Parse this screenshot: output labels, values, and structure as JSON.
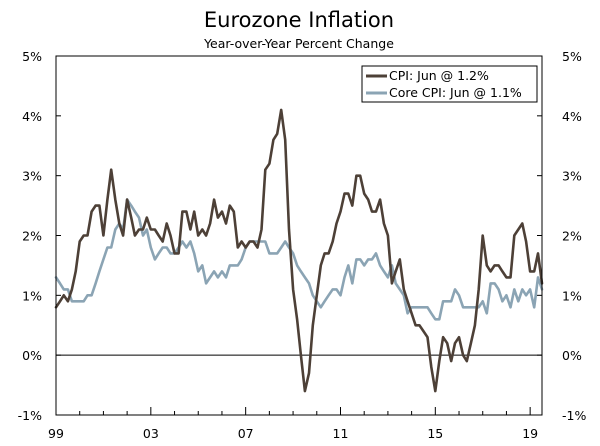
{
  "chart_data": {
    "type": "line",
    "title": "Eurozone Inflation",
    "subtitle": "Year-over-Year Percent Change",
    "xlabel": "",
    "ylabel": "",
    "xlim": [
      1999.0,
      2019.5
    ],
    "ylim": [
      -1,
      5
    ],
    "y_ticks": [
      -1,
      0,
      1,
      2,
      3,
      4,
      5
    ],
    "y_tick_labels": [
      "-1%",
      "0%",
      "1%",
      "2%",
      "3%",
      "4%",
      "5%"
    ],
    "x_ticks": [
      1999,
      2003,
      2007,
      2011,
      2015,
      2019
    ],
    "x_tick_labels": [
      "99",
      "03",
      "07",
      "11",
      "15",
      "19"
    ],
    "zero_line": 0,
    "legend_position": "top-right",
    "series": [
      {
        "name": "CPI: Jun @ 1.2%",
        "color": "#4d4037",
        "points": [
          [
            1999.0,
            0.8
          ],
          [
            1999.17,
            0.9
          ],
          [
            1999.33,
            1.0
          ],
          [
            1999.5,
            0.9
          ],
          [
            1999.67,
            1.1
          ],
          [
            1999.83,
            1.4
          ],
          [
            2000.0,
            1.9
          ],
          [
            2000.17,
            2.0
          ],
          [
            2000.33,
            2.0
          ],
          [
            2000.5,
            2.4
          ],
          [
            2000.67,
            2.5
          ],
          [
            2000.83,
            2.5
          ],
          [
            2001.0,
            2.0
          ],
          [
            2001.17,
            2.6
          ],
          [
            2001.33,
            3.1
          ],
          [
            2001.5,
            2.6
          ],
          [
            2001.67,
            2.2
          ],
          [
            2001.83,
            2.0
          ],
          [
            2002.0,
            2.6
          ],
          [
            2002.17,
            2.3
          ],
          [
            2002.33,
            2.0
          ],
          [
            2002.5,
            2.1
          ],
          [
            2002.67,
            2.1
          ],
          [
            2002.83,
            2.3
          ],
          [
            2003.0,
            2.1
          ],
          [
            2003.17,
            2.1
          ],
          [
            2003.33,
            2.0
          ],
          [
            2003.5,
            1.9
          ],
          [
            2003.67,
            2.2
          ],
          [
            2003.83,
            2.0
          ],
          [
            2004.0,
            1.7
          ],
          [
            2004.17,
            1.7
          ],
          [
            2004.33,
            2.4
          ],
          [
            2004.5,
            2.4
          ],
          [
            2004.67,
            2.1
          ],
          [
            2004.83,
            2.4
          ],
          [
            2005.0,
            2.0
          ],
          [
            2005.17,
            2.1
          ],
          [
            2005.33,
            2.0
          ],
          [
            2005.5,
            2.2
          ],
          [
            2005.67,
            2.6
          ],
          [
            2005.83,
            2.3
          ],
          [
            2006.0,
            2.4
          ],
          [
            2006.17,
            2.2
          ],
          [
            2006.33,
            2.5
          ],
          [
            2006.5,
            2.4
          ],
          [
            2006.67,
            1.8
          ],
          [
            2006.83,
            1.9
          ],
          [
            2007.0,
            1.8
          ],
          [
            2007.17,
            1.9
          ],
          [
            2007.33,
            1.9
          ],
          [
            2007.5,
            1.8
          ],
          [
            2007.67,
            2.1
          ],
          [
            2007.83,
            3.1
          ],
          [
            2008.0,
            3.2
          ],
          [
            2008.17,
            3.6
          ],
          [
            2008.33,
            3.7
          ],
          [
            2008.5,
            4.1
          ],
          [
            2008.67,
            3.6
          ],
          [
            2008.83,
            2.1
          ],
          [
            2009.0,
            1.1
          ],
          [
            2009.17,
            0.6
          ],
          [
            2009.33,
            0.0
          ],
          [
            2009.5,
            -0.6
          ],
          [
            2009.67,
            -0.3
          ],
          [
            2009.83,
            0.5
          ],
          [
            2010.0,
            1.0
          ],
          [
            2010.17,
            1.5
          ],
          [
            2010.33,
            1.7
          ],
          [
            2010.5,
            1.7
          ],
          [
            2010.67,
            1.9
          ],
          [
            2010.83,
            2.2
          ],
          [
            2011.0,
            2.4
          ],
          [
            2011.17,
            2.7
          ],
          [
            2011.33,
            2.7
          ],
          [
            2011.5,
            2.5
          ],
          [
            2011.67,
            3.0
          ],
          [
            2011.83,
            3.0
          ],
          [
            2012.0,
            2.7
          ],
          [
            2012.17,
            2.6
          ],
          [
            2012.33,
            2.4
          ],
          [
            2012.5,
            2.4
          ],
          [
            2012.67,
            2.6
          ],
          [
            2012.83,
            2.2
          ],
          [
            2013.0,
            2.0
          ],
          [
            2013.17,
            1.2
          ],
          [
            2013.33,
            1.4
          ],
          [
            2013.5,
            1.6
          ],
          [
            2013.67,
            1.1
          ],
          [
            2013.83,
            0.9
          ],
          [
            2014.0,
            0.7
          ],
          [
            2014.17,
            0.5
          ],
          [
            2014.33,
            0.5
          ],
          [
            2014.5,
            0.4
          ],
          [
            2014.67,
            0.3
          ],
          [
            2014.83,
            -0.2
          ],
          [
            2015.0,
            -0.6
          ],
          [
            2015.17,
            -0.1
          ],
          [
            2015.33,
            0.3
          ],
          [
            2015.5,
            0.2
          ],
          [
            2015.67,
            -0.1
          ],
          [
            2015.83,
            0.2
          ],
          [
            2016.0,
            0.3
          ],
          [
            2016.17,
            0.0
          ],
          [
            2016.33,
            -0.1
          ],
          [
            2016.5,
            0.2
          ],
          [
            2016.67,
            0.5
          ],
          [
            2016.83,
            1.1
          ],
          [
            2017.0,
            2.0
          ],
          [
            2017.17,
            1.5
          ],
          [
            2017.33,
            1.4
          ],
          [
            2017.5,
            1.5
          ],
          [
            2017.67,
            1.5
          ],
          [
            2017.83,
            1.4
          ],
          [
            2018.0,
            1.3
          ],
          [
            2018.17,
            1.3
          ],
          [
            2018.33,
            2.0
          ],
          [
            2018.5,
            2.1
          ],
          [
            2018.67,
            2.2
          ],
          [
            2018.83,
            1.9
          ],
          [
            2019.0,
            1.4
          ],
          [
            2019.17,
            1.4
          ],
          [
            2019.33,
            1.7
          ],
          [
            2019.5,
            1.2
          ]
        ]
      },
      {
        "name": "Core CPI: Jun @ 1.1%",
        "color": "#8ba4b4",
        "points": [
          [
            1999.0,
            1.3
          ],
          [
            1999.17,
            1.2
          ],
          [
            1999.33,
            1.1
          ],
          [
            1999.5,
            1.1
          ],
          [
            1999.67,
            0.9
          ],
          [
            1999.83,
            0.9
          ],
          [
            2000.0,
            0.9
          ],
          [
            2000.17,
            0.9
          ],
          [
            2000.33,
            1.0
          ],
          [
            2000.5,
            1.0
          ],
          [
            2000.67,
            1.2
          ],
          [
            2000.83,
            1.4
          ],
          [
            2001.0,
            1.6
          ],
          [
            2001.17,
            1.8
          ],
          [
            2001.33,
            1.8
          ],
          [
            2001.5,
            2.1
          ],
          [
            2001.67,
            2.2
          ],
          [
            2001.83,
            2.1
          ],
          [
            2002.0,
            2.6
          ],
          [
            2002.17,
            2.5
          ],
          [
            2002.33,
            2.4
          ],
          [
            2002.5,
            2.3
          ],
          [
            2002.67,
            2.0
          ],
          [
            2002.83,
            2.1
          ],
          [
            2003.0,
            1.8
          ],
          [
            2003.17,
            1.6
          ],
          [
            2003.33,
            1.7
          ],
          [
            2003.5,
            1.8
          ],
          [
            2003.67,
            1.8
          ],
          [
            2003.83,
            1.7
          ],
          [
            2004.0,
            1.7
          ],
          [
            2004.17,
            1.8
          ],
          [
            2004.33,
            1.9
          ],
          [
            2004.5,
            1.8
          ],
          [
            2004.67,
            1.9
          ],
          [
            2004.83,
            1.7
          ],
          [
            2005.0,
            1.4
          ],
          [
            2005.17,
            1.5
          ],
          [
            2005.33,
            1.2
          ],
          [
            2005.5,
            1.3
          ],
          [
            2005.67,
            1.4
          ],
          [
            2005.83,
            1.3
          ],
          [
            2006.0,
            1.4
          ],
          [
            2006.17,
            1.3
          ],
          [
            2006.33,
            1.5
          ],
          [
            2006.5,
            1.5
          ],
          [
            2006.67,
            1.5
          ],
          [
            2006.83,
            1.6
          ],
          [
            2007.0,
            1.8
          ],
          [
            2007.17,
            1.9
          ],
          [
            2007.33,
            1.9
          ],
          [
            2007.5,
            1.9
          ],
          [
            2007.67,
            1.9
          ],
          [
            2007.83,
            1.9
          ],
          [
            2008.0,
            1.7
          ],
          [
            2008.17,
            1.7
          ],
          [
            2008.33,
            1.7
          ],
          [
            2008.5,
            1.8
          ],
          [
            2008.67,
            1.9
          ],
          [
            2008.83,
            1.8
          ],
          [
            2009.0,
            1.7
          ],
          [
            2009.17,
            1.5
          ],
          [
            2009.33,
            1.4
          ],
          [
            2009.5,
            1.3
          ],
          [
            2009.67,
            1.2
          ],
          [
            2009.83,
            1.0
          ],
          [
            2010.0,
            0.9
          ],
          [
            2010.17,
            0.8
          ],
          [
            2010.33,
            0.9
          ],
          [
            2010.5,
            1.0
          ],
          [
            2010.67,
            1.1
          ],
          [
            2010.83,
            1.1
          ],
          [
            2011.0,
            1.0
          ],
          [
            2011.17,
            1.3
          ],
          [
            2011.33,
            1.5
          ],
          [
            2011.5,
            1.2
          ],
          [
            2011.67,
            1.6
          ],
          [
            2011.83,
            1.6
          ],
          [
            2012.0,
            1.5
          ],
          [
            2012.17,
            1.6
          ],
          [
            2012.33,
            1.6
          ],
          [
            2012.5,
            1.7
          ],
          [
            2012.67,
            1.5
          ],
          [
            2012.83,
            1.4
          ],
          [
            2013.0,
            1.3
          ],
          [
            2013.17,
            1.5
          ],
          [
            2013.33,
            1.2
          ],
          [
            2013.5,
            1.1
          ],
          [
            2013.67,
            1.0
          ],
          [
            2013.83,
            0.7
          ],
          [
            2014.0,
            0.8
          ],
          [
            2014.17,
            0.8
          ],
          [
            2014.33,
            0.8
          ],
          [
            2014.5,
            0.8
          ],
          [
            2014.67,
            0.8
          ],
          [
            2014.83,
            0.7
          ],
          [
            2015.0,
            0.6
          ],
          [
            2015.17,
            0.6
          ],
          [
            2015.33,
            0.9
          ],
          [
            2015.5,
            0.9
          ],
          [
            2015.67,
            0.9
          ],
          [
            2015.83,
            1.1
          ],
          [
            2016.0,
            1.0
          ],
          [
            2016.17,
            0.8
          ],
          [
            2016.33,
            0.8
          ],
          [
            2016.5,
            0.8
          ],
          [
            2016.67,
            0.8
          ],
          [
            2016.83,
            0.8
          ],
          [
            2017.0,
            0.9
          ],
          [
            2017.17,
            0.7
          ],
          [
            2017.33,
            1.2
          ],
          [
            2017.5,
            1.2
          ],
          [
            2017.67,
            1.1
          ],
          [
            2017.83,
            0.9
          ],
          [
            2018.0,
            1.0
          ],
          [
            2018.17,
            0.8
          ],
          [
            2018.33,
            1.1
          ],
          [
            2018.5,
            0.9
          ],
          [
            2018.67,
            1.1
          ],
          [
            2018.83,
            1.0
          ],
          [
            2019.0,
            1.1
          ],
          [
            2019.17,
            0.8
          ],
          [
            2019.33,
            1.3
          ],
          [
            2019.5,
            1.1
          ]
        ]
      }
    ]
  }
}
